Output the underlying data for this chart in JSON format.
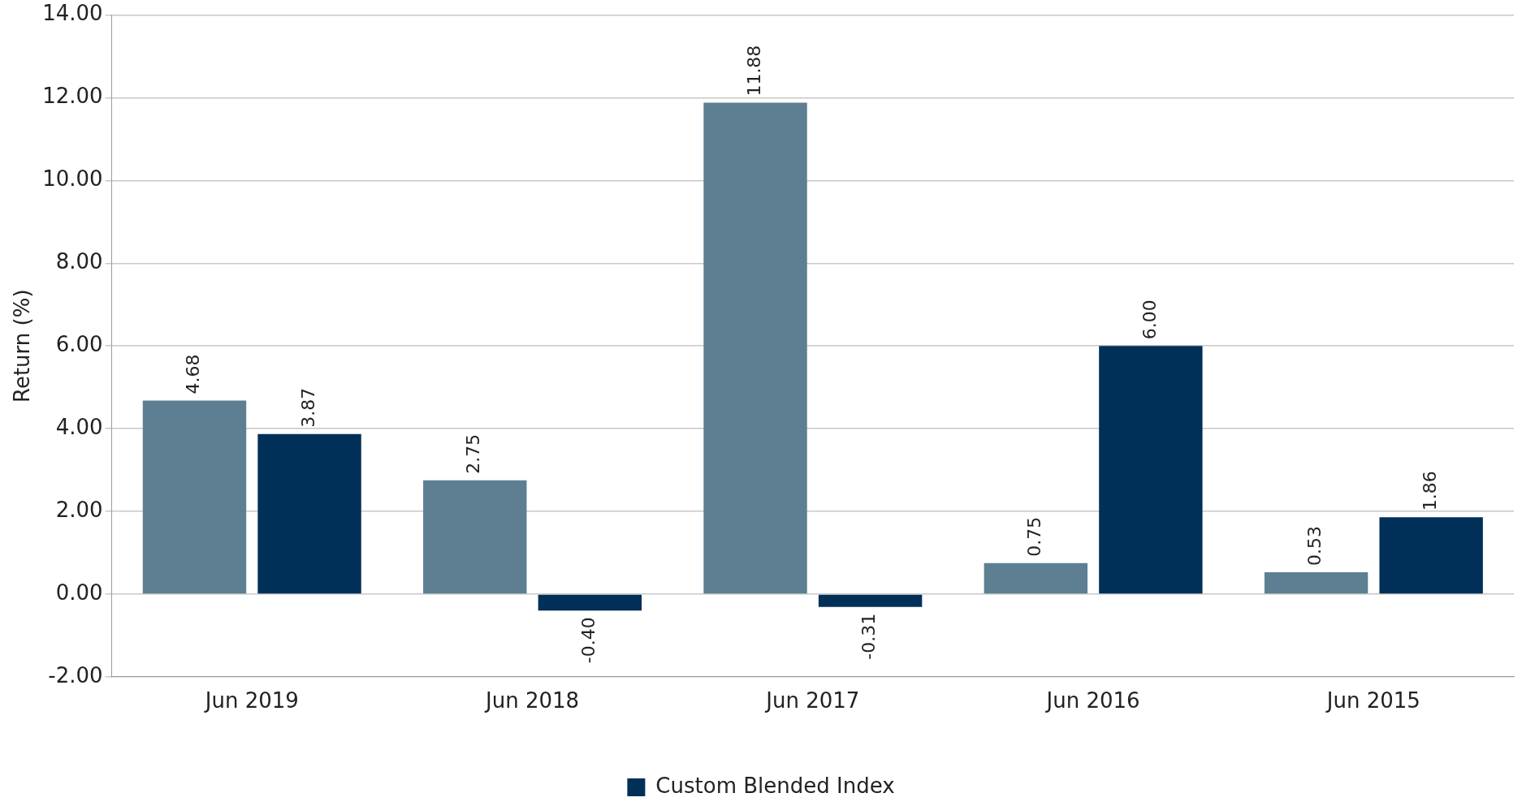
{
  "chart_data": {
    "type": "bar",
    "ylabel": "Return (%)",
    "categories": [
      "Jun 2019",
      "Jun 2018",
      "Jun 2017",
      "Jun 2016",
      "Jun 2015"
    ],
    "series": [
      {
        "color": "#5d7f91",
        "values": [
          4.68,
          2.75,
          11.88,
          0.75,
          0.53
        ],
        "value_labels": [
          "4.68",
          "2.75",
          "11.88",
          "0.75",
          "0.53"
        ]
      },
      {
        "name": "Custom Blended Index",
        "color": "#003057",
        "values": [
          3.87,
          -0.4,
          -0.31,
          6.0,
          1.86
        ],
        "value_labels": [
          "3.87",
          "-0.40",
          "-0.31",
          "6.00",
          "1.86"
        ]
      }
    ],
    "ylim": [
      -2,
      14
    ],
    "yticks": [
      {
        "value": -2,
        "label": "-2.00"
      },
      {
        "value": 0,
        "label": "0.00"
      },
      {
        "value": 2,
        "label": "2.00"
      },
      {
        "value": 4,
        "label": "4.00"
      },
      {
        "value": 6,
        "label": "6.00"
      },
      {
        "value": 8,
        "label": "8.00"
      },
      {
        "value": 10,
        "label": "10.00"
      },
      {
        "value": 12,
        "label": "12.00"
      },
      {
        "value": 14,
        "label": "14.00"
      }
    ],
    "grid": "y",
    "legend": "bottom"
  }
}
